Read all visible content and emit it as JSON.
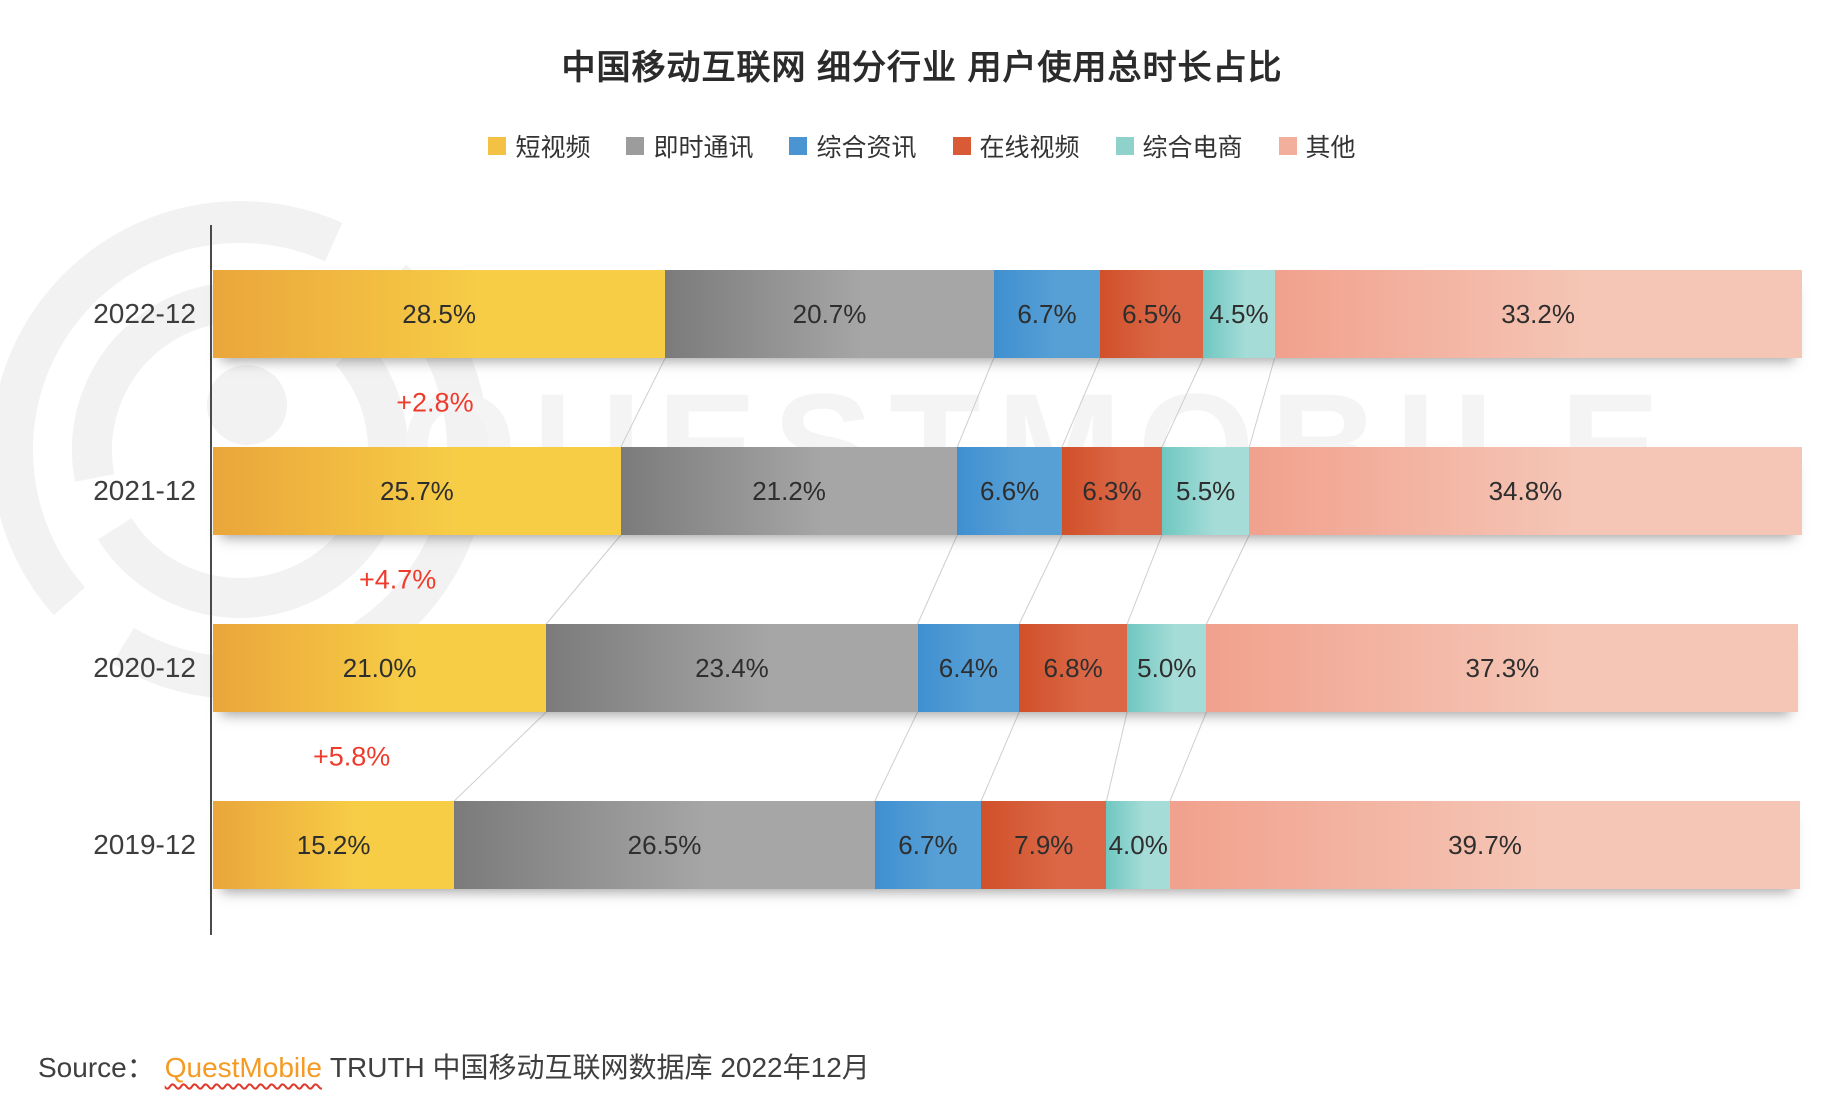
{
  "title": "中国移动互联网 细分行业 用户使用总时长占比",
  "legend": [
    {
      "label": "短视频",
      "color": "#F3C244"
    },
    {
      "label": "即时通讯",
      "color": "#9C9C9C"
    },
    {
      "label": "综合资讯",
      "color": "#4A94D1"
    },
    {
      "label": "在线视频",
      "color": "#D95B35"
    },
    {
      "label": "综合电商",
      "color": "#8FD2CC"
    },
    {
      "label": "其他",
      "color": "#F2AF9C"
    }
  ],
  "chart_data": {
    "type": "bar",
    "subtype": "horizontal-stacked-percent",
    "xlim": [
      0,
      100
    ],
    "grid": false,
    "legend_position": "top-center",
    "categories": [
      "2022-12",
      "2021-12",
      "2020-12",
      "2019-12"
    ],
    "series": [
      {
        "name": "短视频",
        "color_start": "#EAA63B",
        "color_end": "#F7CD46",
        "values": [
          28.5,
          25.7,
          21.0,
          15.2
        ]
      },
      {
        "name": "即时通讯",
        "color_start": "#7B7B7B",
        "color_end": "#A6A6A6",
        "values": [
          20.7,
          21.2,
          23.4,
          26.5
        ]
      },
      {
        "name": "综合资讯",
        "color_start": "#3F8FD0",
        "color_end": "#57A0D6",
        "values": [
          6.7,
          6.6,
          6.4,
          6.7
        ]
      },
      {
        "name": "在线视频",
        "color_start": "#D05029",
        "color_end": "#DB6746",
        "values": [
          6.5,
          6.3,
          6.8,
          7.9
        ]
      },
      {
        "name": "综合电商",
        "color_start": "#6FC7C1",
        "color_end": "#A5DCD7",
        "values": [
          4.5,
          5.5,
          5.0,
          4.0
        ]
      },
      {
        "name": "其他",
        "color_start": "#F1A18D",
        "color_end": "#F5C6B6",
        "values": [
          33.2,
          34.8,
          37.3,
          39.7
        ]
      }
    ],
    "value_suffix": "%",
    "value_decimals": 1,
    "annotations": [
      {
        "label": "+2.8%",
        "between_rows": [
          0,
          1
        ]
      },
      {
        "label": "+4.7%",
        "between_rows": [
          1,
          2
        ]
      },
      {
        "label": "+5.8%",
        "between_rows": [
          2,
          3
        ]
      }
    ],
    "annotation_color": "#EF3B2C",
    "connector_line_color": "#cfcfcf"
  },
  "source": {
    "prefix": "Source：",
    "brand": "QuestMobile",
    "suffix": "TRUTH 中国移动互联网数据库 2022年12月"
  },
  "watermark": {
    "text": "QUESTMOBILE"
  }
}
